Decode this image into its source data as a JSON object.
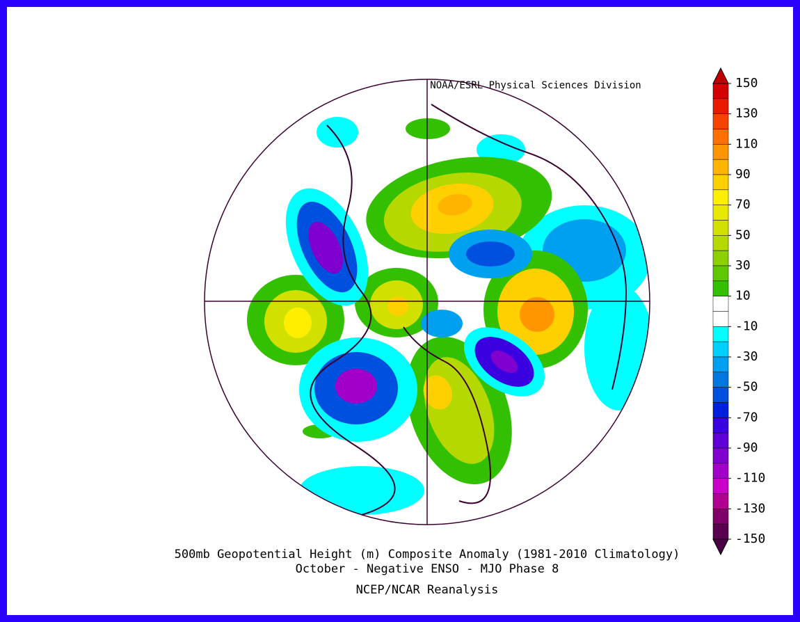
{
  "map": {
    "credit": "NOAA/ESRL Physical Sciences Division",
    "caption": [
      "500mb Geopotential Height (m) Composite Anomaly (1981-2010 Climatology)",
      "October - Negative ENSO - MJO Phase 8"
    ],
    "source": "NCEP/NCAR Reanalysis"
  },
  "colorbar": {
    "labels": [
      150,
      130,
      110,
      90,
      70,
      50,
      30,
      10,
      -10,
      -30,
      -50,
      -70,
      -90,
      -110,
      -130,
      -150
    ],
    "colors": [
      "#d40000",
      "#e81a00",
      "#f44400",
      "#ff7000",
      "#ff9600",
      "#ffb400",
      "#ffd000",
      "#ffee00",
      "#e8e800",
      "#d2e000",
      "#b4d800",
      "#8cd000",
      "#60c800",
      "#32c000",
      "#ffffff",
      "#ffffff",
      "#00ffff",
      "#00d0ff",
      "#00a0f0",
      "#0078e0",
      "#0050e0",
      "#0020e0",
      "#3a00e0",
      "#6000d8",
      "#8000d0",
      "#a000c8",
      "#c800c8",
      "#b00090",
      "#80006a",
      "#5a0050"
    ],
    "over_color": "#c00000",
    "under_color": "#4a0045"
  }
}
